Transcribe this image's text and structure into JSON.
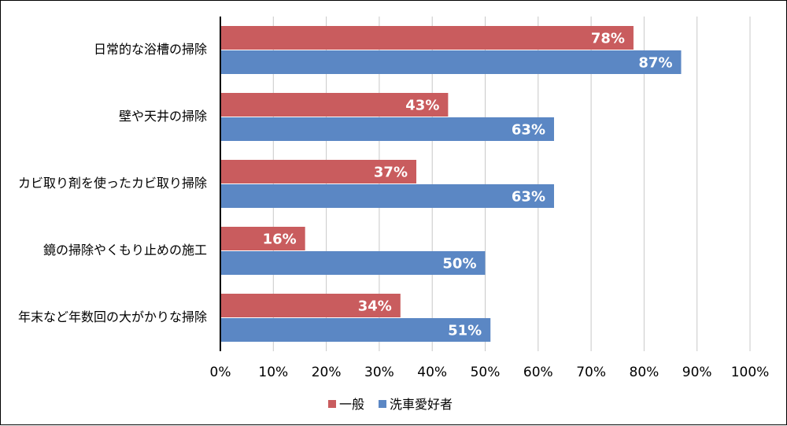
{
  "chart_data": {
    "type": "bar",
    "orientation": "horizontal",
    "categories": [
      "日常的な浴槽の掃除",
      "壁や天井の掃除",
      "カビ取り剤を使ったカビ取り掃除",
      "鏡の掃除やくもり止めの施工",
      "年末など年数回の大がかりな掃除"
    ],
    "series": [
      {
        "name": "一般",
        "color": "#c95c5e",
        "values": [
          78,
          43,
          37,
          16,
          34
        ]
      },
      {
        "name": "洗車愛好者",
        "color": "#5b87c4",
        "values": [
          87,
          63,
          63,
          50,
          51
        ]
      }
    ],
    "value_suffix": "%",
    "xlim": [
      0,
      100
    ],
    "x_ticks": [
      "0%",
      "10%",
      "20%",
      "30%",
      "40%",
      "50%",
      "60%",
      "70%",
      "80%",
      "90%",
      "100%"
    ],
    "grid": true,
    "legend_position": "bottom",
    "title": "",
    "xlabel": "",
    "ylabel": ""
  }
}
